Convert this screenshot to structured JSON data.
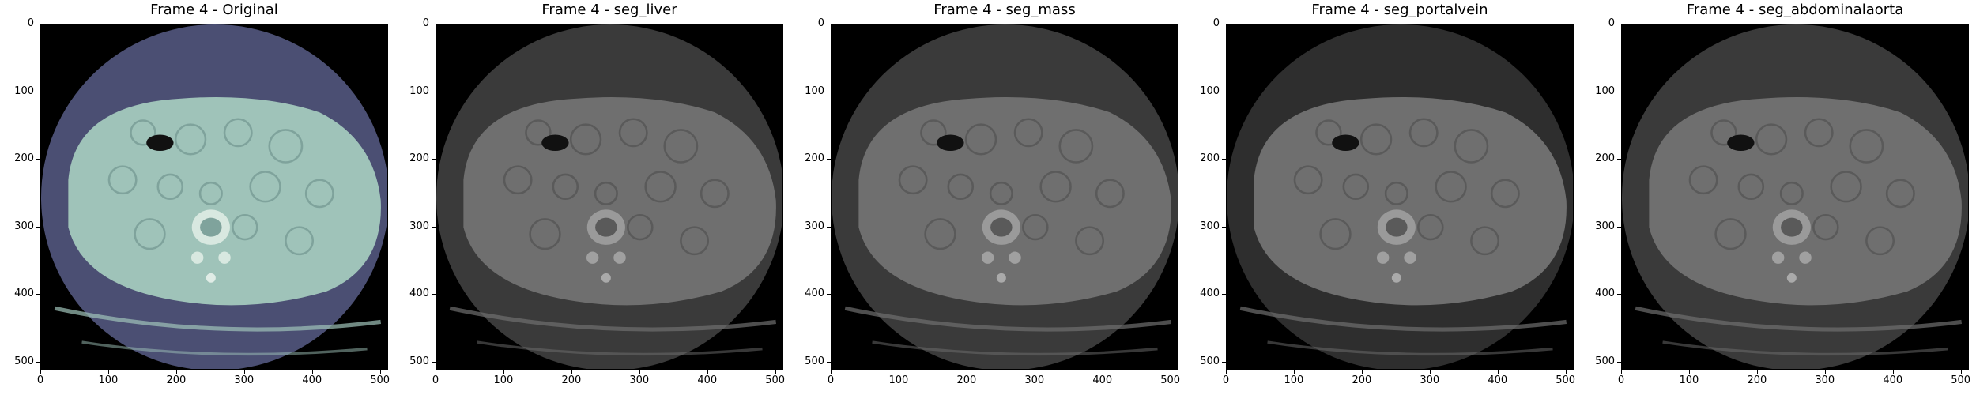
{
  "colors": {
    "original_circle": "#4b4f73",
    "original_body": "#9fc3b9",
    "original_body_dark": "#7fa39c",
    "gray_circle": "#3a3a3a",
    "gray_body": "#6f6f6f",
    "gray_body_dark": "#5a5a5a",
    "gray_circle_portal": "#2e2e2e"
  },
  "axis": {
    "y_ticks": [
      "0",
      "100",
      "200",
      "300",
      "400",
      "500"
    ],
    "x_ticks": [
      "0",
      "100",
      "200",
      "300",
      "400",
      "500"
    ]
  },
  "panels": [
    {
      "title": "Frame 4 - Original",
      "variant": "original"
    },
    {
      "title": "Frame 4 - seg_liver",
      "variant": "gray"
    },
    {
      "title": "Frame 4 - seg_mass",
      "variant": "gray"
    },
    {
      "title": "Frame 4 - seg_portalvein",
      "variant": "gray"
    },
    {
      "title": "Frame 4 - seg_abdominalaorta",
      "variant": "gray"
    }
  ]
}
